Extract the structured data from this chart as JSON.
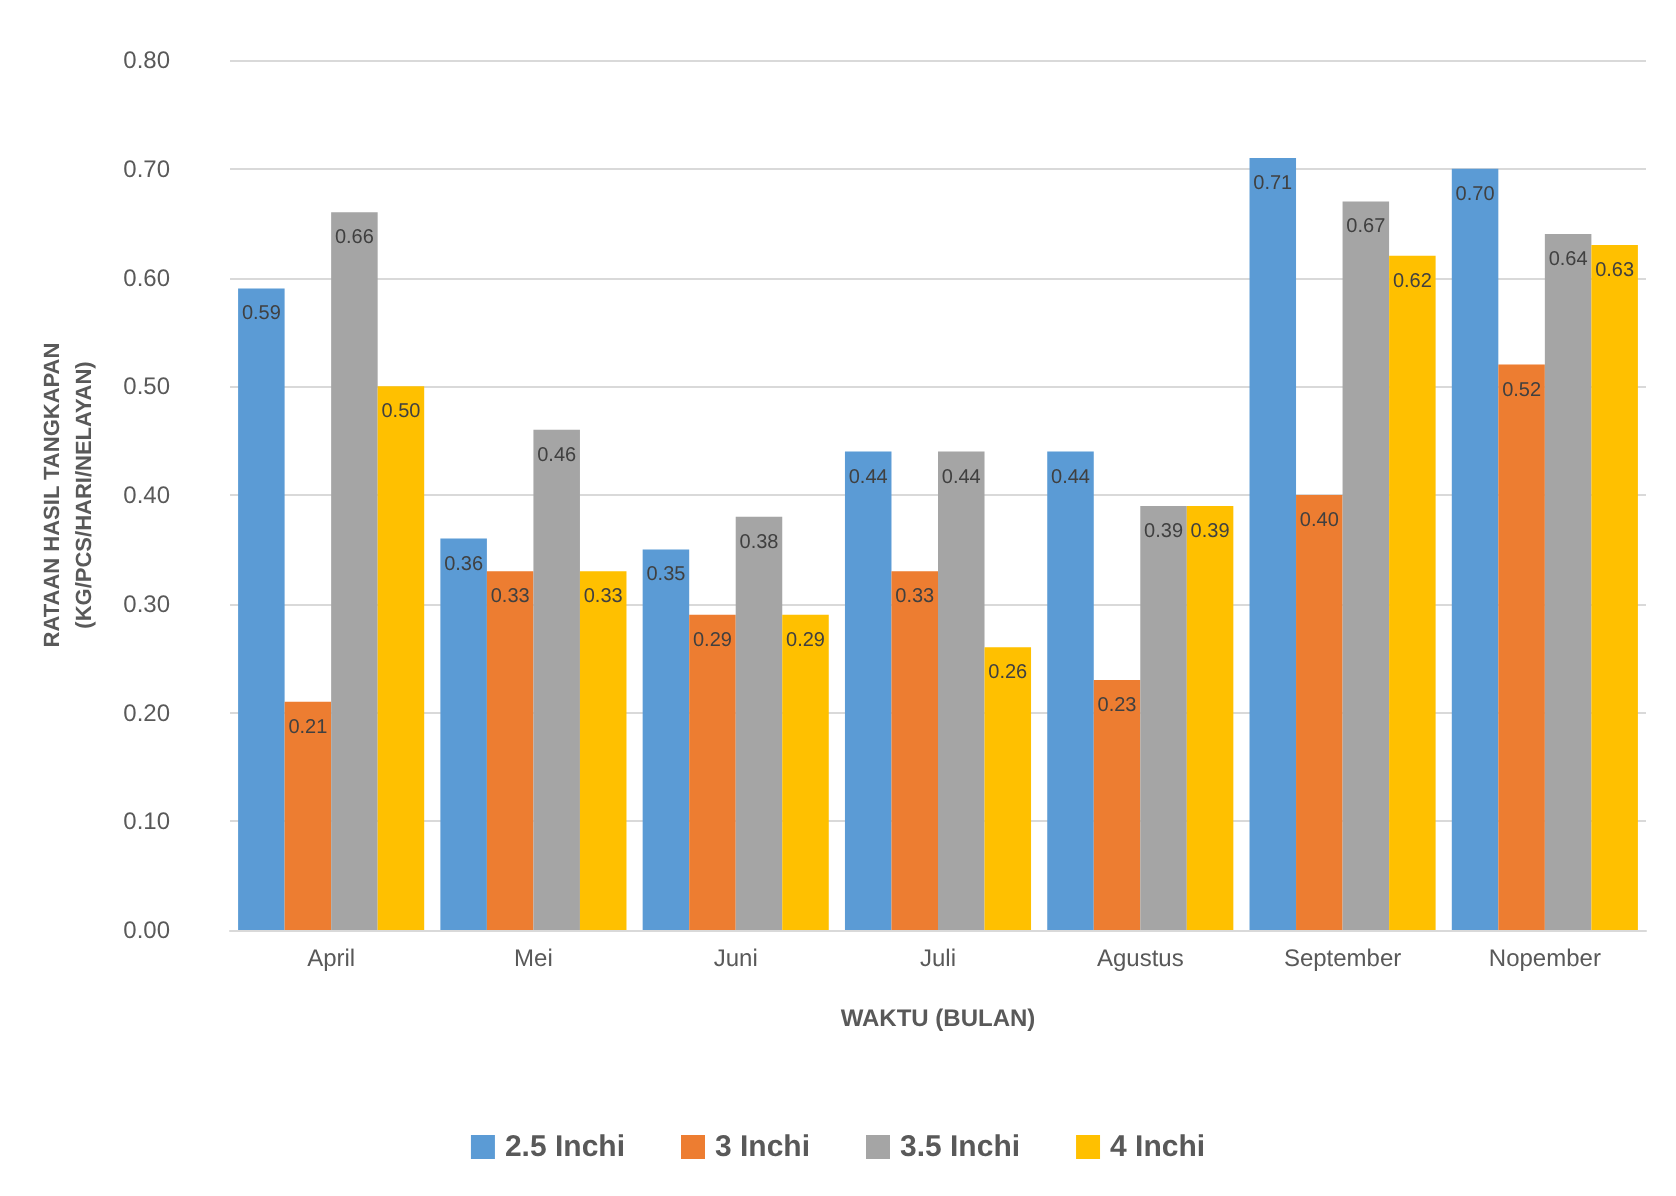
{
  "chart_data": {
    "type": "bar",
    "xlabel": "WAKTU (BULAN)",
    "ylabel": "RATAAN HASIL TANGKAPAN\n(KG/PCS/HARI/NELAYAN)",
    "categories": [
      "April",
      "Mei",
      "Juni",
      "Juli",
      "Agustus",
      "September",
      "Nopember"
    ],
    "series": [
      {
        "name": "2.5 Inchi",
        "color": "#5b9bd5",
        "values": [
          0.59,
          0.36,
          0.35,
          0.44,
          0.44,
          0.71,
          0.7
        ],
        "value_labels": [
          "0.59",
          "0.36",
          "0.35",
          "0.44",
          "0.44",
          "0.71",
          "0.70"
        ]
      },
      {
        "name": "3 Inchi",
        "color": "#ed7d31",
        "values": [
          0.21,
          0.33,
          0.29,
          0.33,
          0.23,
          0.4,
          0.52
        ],
        "value_labels": [
          "0.21",
          "0.33",
          "0.29",
          "0.33",
          "0.23",
          "0.40",
          "0.52"
        ]
      },
      {
        "name": "3.5 Inchi",
        "color": "#a5a5a5",
        "values": [
          0.66,
          0.46,
          0.38,
          0.44,
          0.39,
          0.67,
          0.64
        ],
        "value_labels": [
          "0.66",
          "0.46",
          "0.38",
          "0.44",
          "0.39",
          "0.67",
          "0.64"
        ]
      },
      {
        "name": "4 Inchi",
        "color": "#ffc000",
        "values": [
          0.5,
          0.33,
          0.29,
          0.26,
          0.39,
          0.62,
          0.63
        ],
        "value_labels": [
          "0.50",
          "0.33",
          "0.29",
          "0.26",
          "0.39",
          "0.62",
          "0.63"
        ]
      }
    ],
    "ylim": [
      0,
      0.8
    ],
    "yticks": [
      {
        "value": 0,
        "label": "0.00"
      },
      {
        "value": 0.1,
        "label": "0.10"
      },
      {
        "value": 0.2,
        "label": "0.20"
      },
      {
        "value": 0.3,
        "label": "0.30"
      },
      {
        "value": 0.4,
        "label": "0.40"
      },
      {
        "value": 0.5,
        "label": "0.50"
      },
      {
        "value": 0.6,
        "label": "0.60"
      },
      {
        "value": 0.7,
        "label": "0.70"
      },
      {
        "value": 0.8,
        "label": "0.80"
      }
    ],
    "grid": "y",
    "legend": "bottom"
  }
}
